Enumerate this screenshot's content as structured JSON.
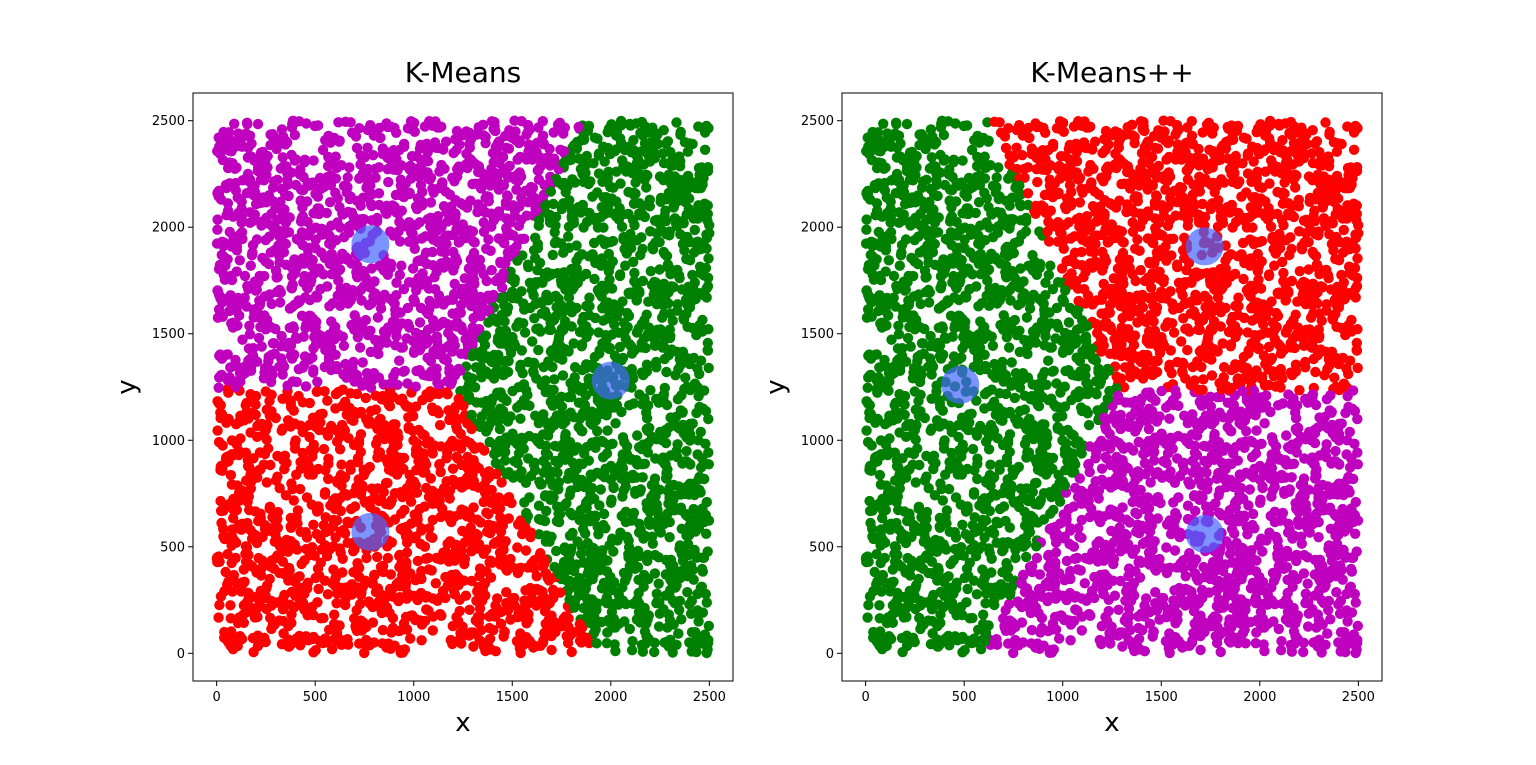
{
  "chart_data": [
    {
      "type": "scatter",
      "title": "K-Means",
      "xlabel": "x",
      "ylabel": "y",
      "xlim": [
        -120,
        2620
      ],
      "ylim": [
        -130,
        2630
      ],
      "xticks": [
        0,
        500,
        1000,
        1500,
        2000,
        2500
      ],
      "yticks": [
        0,
        500,
        1000,
        1500,
        2000,
        2500
      ],
      "grid": false,
      "clusters": [
        {
          "color": "#bf00bf",
          "region": "x < 1250 + 0.31*(y-1250), y >= 1250"
        },
        {
          "color": "#008000",
          "region": "right of boundary"
        },
        {
          "color": "#ff0000",
          "region": "x < 1250 + 0.31*(y-1250) ... y < 1250"
        }
      ],
      "centroids": [
        {
          "x": 780,
          "y": 1920
        },
        {
          "x": 2000,
          "y": 1280
        },
        {
          "x": 780,
          "y": 570
        }
      ],
      "centroid_color": "#4466ff"
    },
    {
      "type": "scatter",
      "title": "K-Means++",
      "xlabel": "x",
      "ylabel": "y",
      "xlim": [
        -120,
        2620
      ],
      "ylim": [
        -130,
        2630
      ],
      "xticks": [
        0,
        500,
        1000,
        1500,
        2000,
        2500
      ],
      "yticks": [
        0,
        500,
        1000,
        1500,
        2000,
        2500
      ],
      "grid": false,
      "clusters": [
        {
          "color": "#008000"
        },
        {
          "color": "#ff0000"
        },
        {
          "color": "#bf00bf"
        }
      ],
      "centroids": [
        {
          "x": 480,
          "y": 1260
        },
        {
          "x": 1720,
          "y": 1910
        },
        {
          "x": 1720,
          "y": 560
        }
      ],
      "centroid_color": "#4466ff"
    }
  ]
}
